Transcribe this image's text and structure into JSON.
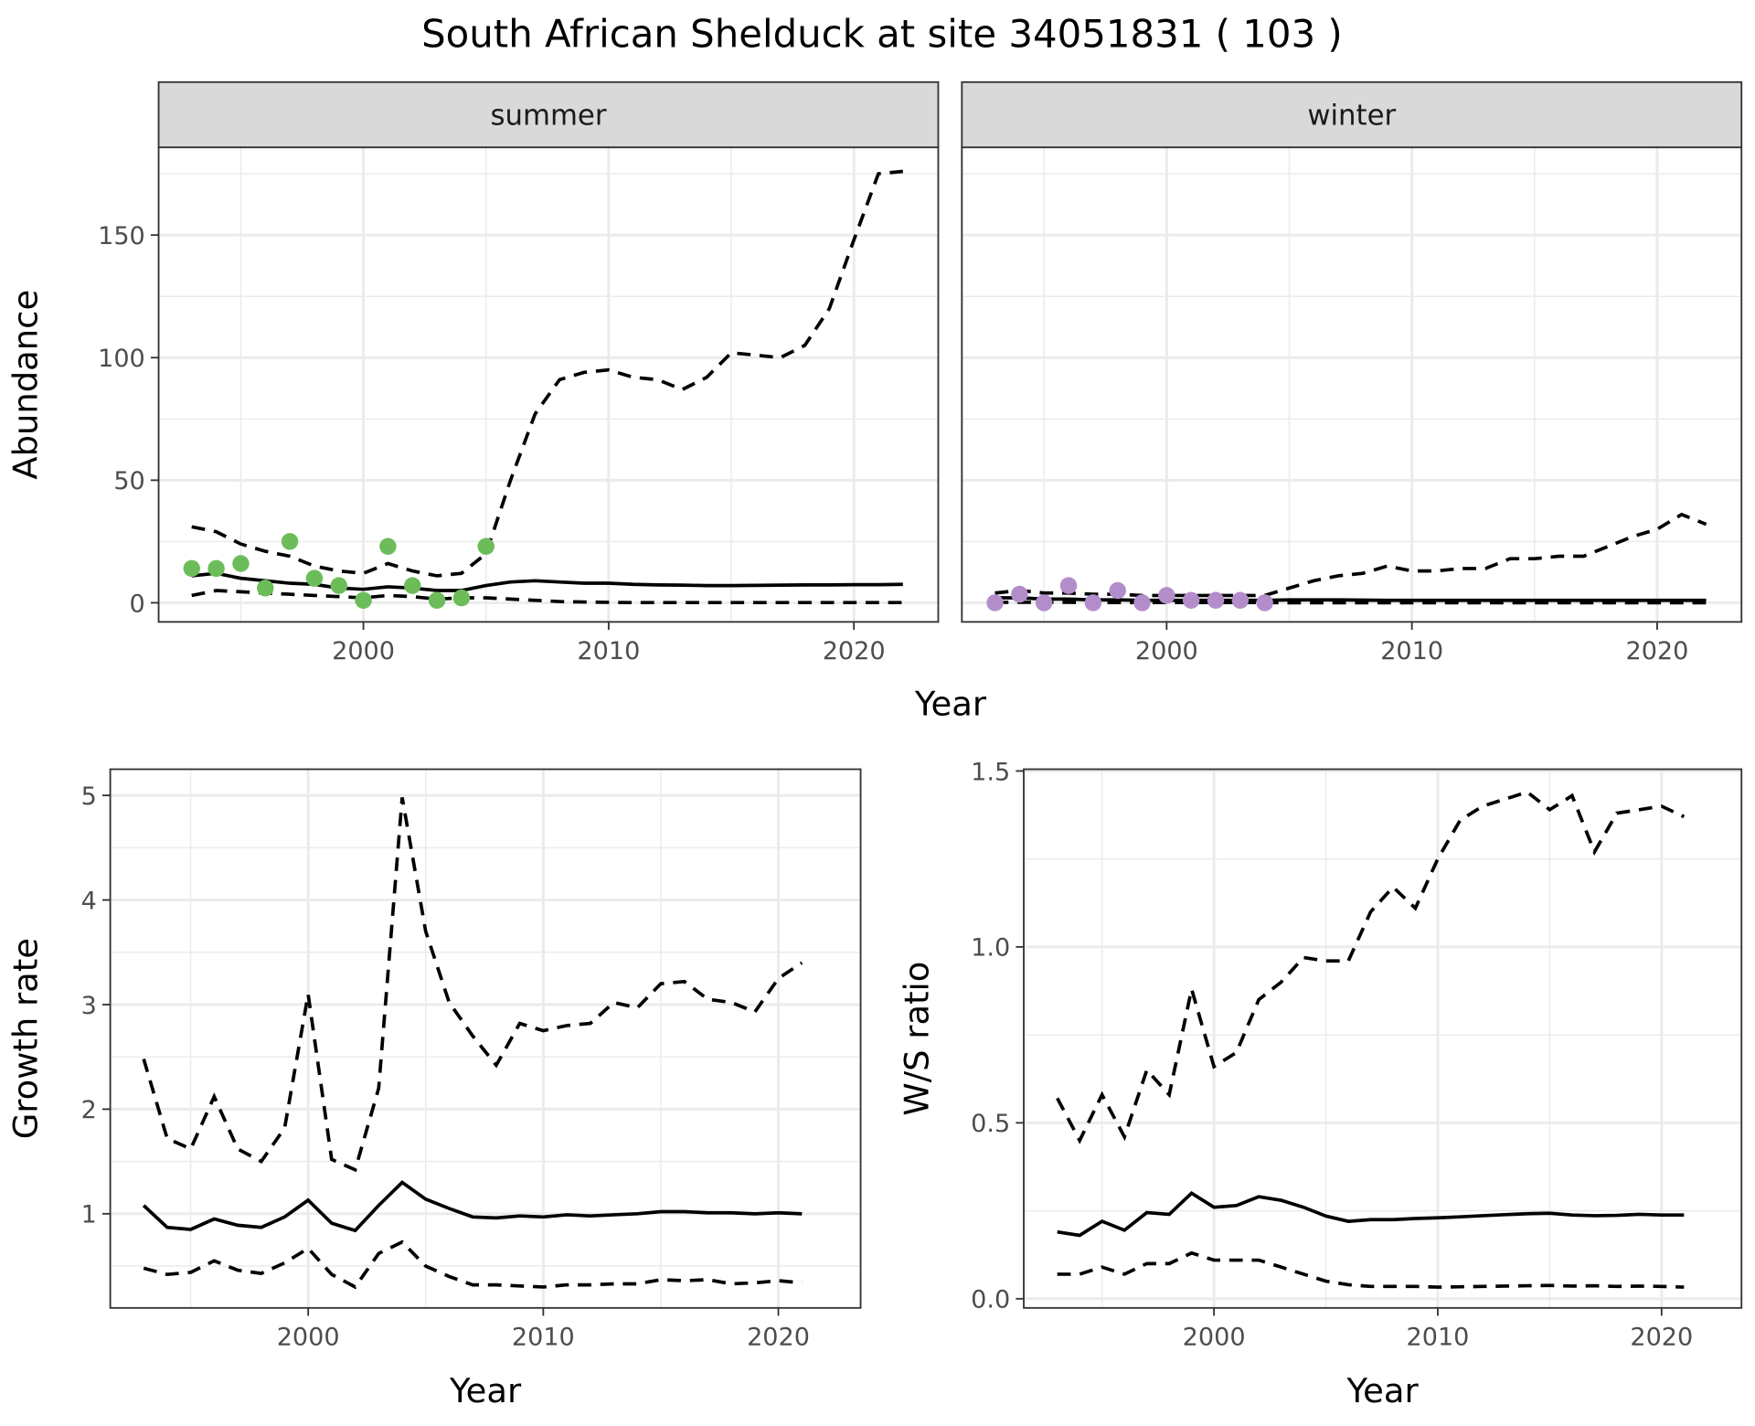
{
  "title": "South African Shelduck at site 34051831 ( 103 )",
  "colors": {
    "summer_points": "#6cbd5a",
    "winter_points": "#b38dca",
    "line": "#000000",
    "strip_bg": "#d9d9d9",
    "grid": "#ebebeb"
  },
  "chart_data": [
    {
      "id": "summer",
      "type": "line",
      "strip": "summer",
      "xlabel": "Year",
      "ylabel": "Abundance",
      "xlim": [
        1991.65,
        2023.44
      ],
      "ylim": [
        -7.8,
        185.8
      ],
      "xticks": [
        2000,
        2010,
        2020
      ],
      "yticks": [
        0,
        50,
        100,
        150
      ],
      "grid": true,
      "point_color": "#6cbd5a",
      "points": {
        "x": [
          1993,
          1994,
          1995,
          1996,
          1997,
          1998,
          1999,
          2000,
          2001,
          2002,
          2003,
          2004,
          2005
        ],
        "y": [
          14,
          14,
          16,
          6,
          25,
          10,
          7,
          1,
          23,
          7,
          1,
          2,
          23
        ]
      },
      "x": [
        1993,
        1994,
        1995,
        1996,
        1997,
        1998,
        1999,
        2000,
        2001,
        2002,
        2003,
        2004,
        2005,
        2006,
        2007,
        2008,
        2009,
        2010,
        2011,
        2012,
        2013,
        2014,
        2015,
        2016,
        2017,
        2018,
        2019,
        2020,
        2021,
        2022
      ],
      "mean": [
        11,
        12,
        10,
        9,
        8,
        7.5,
        6,
        5.5,
        6.5,
        6,
        5,
        5,
        7,
        8.5,
        9,
        8.5,
        8,
        8,
        7.5,
        7.3,
        7.2,
        7,
        7,
        7.1,
        7.2,
        7.3,
        7.3,
        7.4,
        7.4,
        7.5
      ],
      "upper": [
        31,
        29,
        24,
        21,
        19,
        15,
        13,
        12,
        16,
        13,
        11,
        12,
        20,
        50,
        77,
        91,
        94,
        95,
        92,
        91,
        87,
        92,
        102,
        101,
        100,
        105,
        120,
        148,
        175,
        176
      ],
      "lower": [
        3,
        5,
        4.5,
        4,
        3.5,
        3,
        2.5,
        2,
        3,
        2.5,
        1.5,
        2,
        2,
        1.5,
        1,
        0.5,
        0.3,
        0.2,
        0.1,
        0.1,
        0.1,
        0.1,
        0.1,
        0.1,
        0.1,
        0.1,
        0.1,
        0.1,
        0.1,
        0.1
      ]
    },
    {
      "id": "winter",
      "type": "line",
      "strip": "winter",
      "xlabel": "Year",
      "ylabel": "Abundance",
      "xlim": [
        1991.65,
        2023.44
      ],
      "ylim": [
        -7.8,
        185.8
      ],
      "xticks": [
        2000,
        2010,
        2020
      ],
      "yticks": [
        0,
        50,
        100,
        150
      ],
      "grid": true,
      "point_color": "#b38dca",
      "points": {
        "x": [
          1993,
          1994,
          1995,
          1996,
          1997,
          1998,
          1999,
          2000,
          2001,
          2002,
          2003,
          2004
        ],
        "y": [
          0,
          3.5,
          0,
          7,
          0,
          5,
          0,
          3,
          1,
          1,
          1,
          0
        ]
      },
      "x": [
        1993,
        1994,
        1995,
        1996,
        1997,
        1998,
        1999,
        2000,
        2001,
        2002,
        2003,
        2004,
        2005,
        2006,
        2007,
        2008,
        2009,
        2010,
        2011,
        2012,
        2013,
        2014,
        2015,
        2016,
        2017,
        2018,
        2019,
        2020,
        2021,
        2022
      ],
      "mean": [
        2,
        2,
        1.5,
        1.5,
        1.2,
        1.2,
        1,
        1,
        1,
        1,
        1,
        1,
        1.2,
        1.2,
        1.2,
        1.1,
        1,
        1,
        1,
        1,
        1,
        1,
        1,
        1,
        1,
        1,
        1,
        1,
        1,
        1
      ],
      "upper": [
        4,
        5,
        4,
        4,
        3.5,
        3.5,
        3,
        3,
        3,
        3,
        3,
        3,
        6,
        9,
        11,
        12,
        15,
        13,
        13,
        14,
        14,
        18,
        18,
        19,
        19,
        23,
        27,
        30,
        36,
        32
      ],
      "lower": [
        0.2,
        0.2,
        0.2,
        0.2,
        0.1,
        0.1,
        0.1,
        0.1,
        0.1,
        0.1,
        0.1,
        0.1,
        0,
        0,
        0,
        0,
        0,
        0,
        0,
        0,
        0,
        0,
        0,
        0,
        0,
        0,
        0,
        0,
        0,
        0
      ]
    },
    {
      "id": "growth",
      "type": "line",
      "xlabel": "Year",
      "ylabel": "Growth rate",
      "xlim": [
        1991.58,
        2023.5
      ],
      "ylim": [
        0.1,
        5.25
      ],
      "xticks": [
        2000,
        2010,
        2020
      ],
      "yticks": [
        1,
        2,
        3,
        4,
        5
      ],
      "grid": true,
      "x": [
        1993,
        1994,
        1995,
        1996,
        1997,
        1998,
        1999,
        2000,
        2001,
        2002,
        2003,
        2004,
        2005,
        2006,
        2007,
        2008,
        2009,
        2010,
        2011,
        2012,
        2013,
        2014,
        2015,
        2016,
        2017,
        2018,
        2019,
        2020,
        2021
      ],
      "mean": [
        1.08,
        0.87,
        0.85,
        0.95,
        0.89,
        0.87,
        0.97,
        1.13,
        0.91,
        0.84,
        1.08,
        1.3,
        1.14,
        1.05,
        0.97,
        0.96,
        0.98,
        0.97,
        0.99,
        0.98,
        0.99,
        1.0,
        1.02,
        1.02,
        1.01,
        1.01,
        1.0,
        1.01,
        1.0
      ],
      "upper": [
        2.48,
        1.72,
        1.62,
        2.12,
        1.62,
        1.5,
        1.82,
        3.1,
        1.52,
        1.42,
        2.2,
        4.98,
        3.7,
        3.02,
        2.7,
        2.42,
        2.82,
        2.75,
        2.8,
        2.82,
        3.02,
        2.97,
        3.2,
        3.22,
        3.05,
        3.02,
        2.93,
        3.25,
        3.4
      ],
      "lower": [
        0.48,
        0.42,
        0.44,
        0.55,
        0.46,
        0.43,
        0.53,
        0.67,
        0.42,
        0.3,
        0.62,
        0.73,
        0.5,
        0.4,
        0.32,
        0.32,
        0.31,
        0.3,
        0.32,
        0.32,
        0.33,
        0.33,
        0.37,
        0.36,
        0.37,
        0.33,
        0.34,
        0.36,
        0.34
      ]
    },
    {
      "id": "ratio",
      "type": "line",
      "xlabel": "Year",
      "ylabel": "W/S ratio",
      "xlim": [
        1991.5,
        2023.57
      ],
      "ylim": [
        -0.026,
        1.505
      ],
      "xticks": [
        2000,
        2010,
        2020
      ],
      "yticks": [
        0.0,
        0.5,
        1.0,
        1.5
      ],
      "ytick_labels": [
        "0.0",
        "0.5",
        "1.0",
        "1.5"
      ],
      "grid": true,
      "x": [
        1993,
        1994,
        1995,
        1996,
        1997,
        1998,
        1999,
        2000,
        2001,
        2002,
        2003,
        2004,
        2005,
        2006,
        2007,
        2008,
        2009,
        2010,
        2011,
        2012,
        2013,
        2014,
        2015,
        2016,
        2017,
        2018,
        2019,
        2020,
        2021
      ],
      "mean": [
        0.19,
        0.18,
        0.22,
        0.195,
        0.245,
        0.24,
        0.3,
        0.26,
        0.265,
        0.29,
        0.28,
        0.26,
        0.235,
        0.22,
        0.225,
        0.225,
        0.228,
        0.23,
        0.233,
        0.236,
        0.239,
        0.242,
        0.243,
        0.238,
        0.236,
        0.237,
        0.24,
        0.238,
        0.238
      ],
      "upper": [
        0.57,
        0.45,
        0.58,
        0.46,
        0.65,
        0.58,
        0.88,
        0.66,
        0.7,
        0.85,
        0.9,
        0.97,
        0.96,
        0.96,
        1.1,
        1.17,
        1.11,
        1.25,
        1.36,
        1.4,
        1.42,
        1.44,
        1.39,
        1.43,
        1.27,
        1.38,
        1.39,
        1.4,
        1.37
      ],
      "lower": [
        0.07,
        0.07,
        0.09,
        0.07,
        0.1,
        0.1,
        0.13,
        0.11,
        0.11,
        0.11,
        0.09,
        0.07,
        0.05,
        0.04,
        0.035,
        0.035,
        0.035,
        0.033,
        0.034,
        0.035,
        0.036,
        0.037,
        0.038,
        0.036,
        0.037,
        0.035,
        0.036,
        0.035,
        0.033
      ]
    }
  ],
  "shared_xlabel_top": "Year"
}
